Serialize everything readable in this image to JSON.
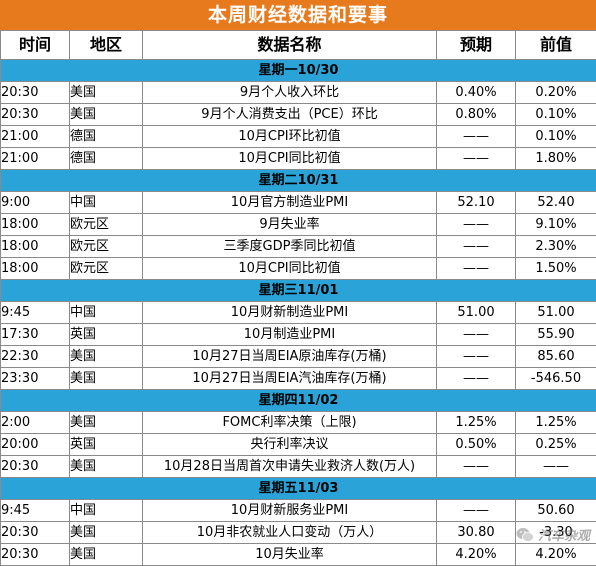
{
  "title": "本周财经数据和要事",
  "headers": {
    "time": "时间",
    "region": "地区",
    "name": "数据名称",
    "forecast": "预期",
    "previous": "前值"
  },
  "days": [
    {
      "label": "星期一10/30",
      "rows": [
        {
          "time": "20:30",
          "region": "美国",
          "name": "9月个人收入环比",
          "forecast": "0.40%",
          "previous": "0.20%"
        },
        {
          "time": "20:30",
          "region": "美国",
          "name": "9月个人消费支出（PCE）环比",
          "forecast": "0.80%",
          "previous": "0.10%"
        },
        {
          "time": "21:00",
          "region": "德国",
          "name": "10月CPI环比初值",
          "forecast": "——",
          "previous": "0.10%"
        },
        {
          "time": "21:00",
          "region": "德国",
          "name": "10月CPI同比初值",
          "forecast": "——",
          "previous": "1.80%"
        }
      ]
    },
    {
      "label": "星期二10/31",
      "rows": [
        {
          "time": "9:00",
          "region": "中国",
          "name": "10月官方制造业PMI",
          "forecast": "52.10",
          "previous": "52.40"
        },
        {
          "time": "18:00",
          "region": "欧元区",
          "name": "9月失业率",
          "forecast": "——",
          "previous": "9.10%"
        },
        {
          "time": "18:00",
          "region": "欧元区",
          "name": "三季度GDP季同比初值",
          "forecast": "——",
          "previous": "2.30%"
        },
        {
          "time": "18:00",
          "region": "欧元区",
          "name": "10月CPI同比初值",
          "forecast": "——",
          "previous": "1.50%"
        }
      ]
    },
    {
      "label": "星期三11/01",
      "rows": [
        {
          "time": "9:45",
          "region": "中国",
          "name": "10月财新制造业PMI",
          "forecast": "51.00",
          "previous": "51.00"
        },
        {
          "time": "17:30",
          "region": "英国",
          "name": "10月制造业PMI",
          "forecast": "——",
          "previous": "55.90"
        },
        {
          "time": "22:30",
          "region": "美国",
          "name": "10月27日当周EIA原油库存(万桶)",
          "forecast": "——",
          "previous": "85.60"
        },
        {
          "time": "23:30",
          "region": "美国",
          "name": "10月27日当周EIA汽油库存(万桶)",
          "forecast": "——",
          "previous": "-546.50"
        }
      ]
    },
    {
      "label": "星期四11/02",
      "rows": [
        {
          "time": "2:00",
          "region": "美国",
          "name": "FOMC利率决策（上限)",
          "forecast": "1.25%",
          "previous": "1.25%"
        },
        {
          "time": "20:00",
          "region": "英国",
          "name": "央行利率决议",
          "forecast": "0.50%",
          "previous": "0.25%"
        },
        {
          "time": "20:30",
          "region": "美国",
          "name": "10月28日当周首次申请失业救济人数(万人)",
          "forecast": "——",
          "previous": "——"
        }
      ]
    },
    {
      "label": "星期五11/03",
      "rows": [
        {
          "time": "9:45",
          "region": "中国",
          "name": "10月财新服务业PMI",
          "forecast": "——",
          "previous": "50.60"
        },
        {
          "time": "20:30",
          "region": "美国",
          "name": "10月非农就业人口变动（万人）",
          "forecast": "30.80",
          "previous": "-3.30"
        },
        {
          "time": "20:30",
          "region": "美国",
          "name": "10月失业率",
          "forecast": "4.20%",
          "previous": "4.20%"
        }
      ]
    }
  ],
  "watermark": {
    "text": "汽车杂观",
    "icon": "wechat-icon"
  },
  "colors": {
    "title_bg": "#e87a1e",
    "day_row_bg": "#29a3d8"
  }
}
